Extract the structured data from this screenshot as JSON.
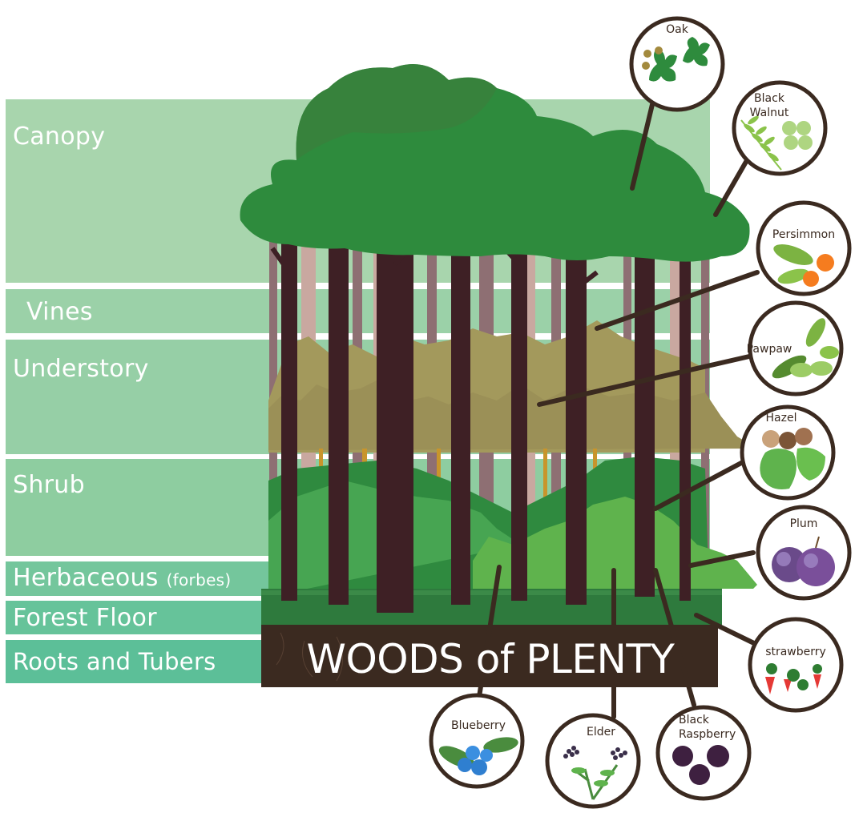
{
  "title": "WOODS of PLENTY",
  "layers": [
    {
      "id": "canopy",
      "label": "Canopy",
      "suffix": ""
    },
    {
      "id": "vines",
      "label": "Vines",
      "suffix": ""
    },
    {
      "id": "understory",
      "label": "Understory",
      "suffix": ""
    },
    {
      "id": "shrub",
      "label": "Shrub",
      "suffix": ""
    },
    {
      "id": "herbaceous",
      "label": "Herbaceous",
      "suffix": "(forbes)"
    },
    {
      "id": "forest-floor",
      "label": "Forest Floor",
      "suffix": ""
    },
    {
      "id": "roots",
      "label": "Roots and Tubers",
      "suffix": ""
    }
  ],
  "plants": [
    {
      "id": "oak",
      "label": "Oak"
    },
    {
      "id": "black-walnut",
      "label": "Black\nWalnut"
    },
    {
      "id": "persimmon",
      "label": "Persimmon"
    },
    {
      "id": "pawpaw",
      "label": "Pawpaw"
    },
    {
      "id": "hazel",
      "label": "Hazel"
    },
    {
      "id": "plum",
      "label": "Plum"
    },
    {
      "id": "strawberry",
      "label": "strawberry"
    },
    {
      "id": "black-raspberry",
      "label": "Black\nRaspberry"
    },
    {
      "id": "elder",
      "label": "Elder"
    },
    {
      "id": "blueberry",
      "label": "Blueberry"
    }
  ],
  "colors": {
    "canopy_band": "#a8d5ad",
    "mid_band": "#8ecda0",
    "low_band": "#5cbf98",
    "canopy": "#2e8b3d",
    "trunk": "#3e2025",
    "understory": "#a3995c",
    "shrub": "#3f9b49",
    "herb": "#5fb34d",
    "soil": "#3b2a20",
    "bubble_ring": "#3b2a20"
  }
}
